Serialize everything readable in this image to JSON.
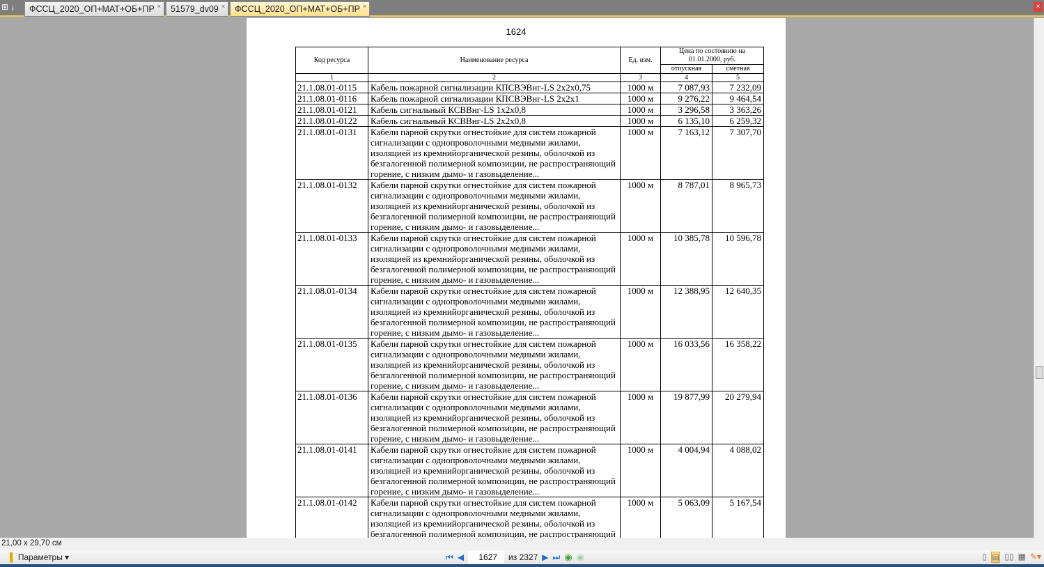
{
  "tabs": [
    {
      "label": "ФССЦ_2020_ОП+МАТ+ОБ+ПР",
      "active": false
    },
    {
      "label": "51579_dv09",
      "active": false
    },
    {
      "label": "ФССЦ_2020_ОП+МАТ+ОБ+ПР",
      "active": true
    }
  ],
  "page": {
    "number": "1624"
  },
  "table": {
    "headers": {
      "code": "Код ресурса",
      "name": "Наименование ресурса",
      "unit": "Ед. изм.",
      "price": "Цена по состоянию на 01.01.2000, руб.",
      "release": "отпускная",
      "estimate": "сметная"
    },
    "col_numbers": [
      "1",
      "2",
      "3",
      "4",
      "5"
    ],
    "rows": [
      {
        "code": "21.1.08.01-0115",
        "name": "Кабель пожарной сигнализации КПСВЭВнг-LS 2x2x0,75",
        "unit": "1000 м",
        "release": "7 087,93",
        "estimate": "7 232,09"
      },
      {
        "code": "21.1.08.01-0116",
        "name": "Кабель пожарной сигнализации КПСВЭВнг-LS 2x2x1",
        "unit": "1000 м",
        "release": "9 276,22",
        "estimate": "9 464,54"
      },
      {
        "code": "21.1.08.01-0121",
        "name": "Кабель сигнальный КСВВнг-LS 1x2x0,8",
        "unit": "1000 м",
        "release": "3 296,58",
        "estimate": "3 363,26"
      },
      {
        "code": "21.1.08.01-0122",
        "name": "Кабель сигнальный КСВВнг-LS 2x2x0,8",
        "unit": "1000 м",
        "release": "6 135,10",
        "estimate": "6 259,32"
      },
      {
        "code": "21.1.08.01-0131",
        "name": "Кабели парной скрутки огнестойкие для систем пожарной сигнализации с однопроволочными медными жилами, изоляцией из кремнийорганической резины, оболочкой из безгалогенной полимерной композиции, не распространяющий горение, с низким дымо- и газовыделение...",
        "unit": "1000 м",
        "release": "7 163,12",
        "estimate": "7 307,70"
      },
      {
        "code": "21.1.08.01-0132",
        "name": "Кабели парной скрутки огнестойкие для систем пожарной сигнализации с однопроволочными медными жилами, изоляцией из кремнийорганической резины, оболочкой из безгалогенной полимерной композиции, не распространяющий горение, с низким дымо- и газовыделение...",
        "unit": "1000 м",
        "release": "8 787,01",
        "estimate": "8 965,73"
      },
      {
        "code": "21.1.08.01-0133",
        "name": "Кабели парной скрутки огнестойкие для систем пожарной сигнализации с однопроволочными медными жилами, изоляцией из кремнийорганической резины, оболочкой из безгалогенной полимерной композиции, не распространяющий горение, с низким дымо- и газовыделение...",
        "unit": "1000 м",
        "release": "10 385,78",
        "estimate": "10 596,78"
      },
      {
        "code": "21.1.08.01-0134",
        "name": "Кабели парной скрутки огнестойкие для систем пожарной сигнализации с однопроволочными медными жилами, изоляцией из кремнийорганической резины, оболочкой из безгалогенной полимерной композиции, не распространяющий горение, с низким дымо- и газовыделение...",
        "unit": "1000 м",
        "release": "12 388,95",
        "estimate": "12 640,35"
      },
      {
        "code": "21.1.08.01-0135",
        "name": "Кабели парной скрутки огнестойкие для систем пожарной сигнализации с однопроволочными медными жилами, изоляцией из кремнийорганической резины, оболочкой из безгалогенной полимерной композиции, не распространяющий горение, с низким дымо- и газовыделение...",
        "unit": "1000 м",
        "release": "16 033,56",
        "estimate": "16 358,22"
      },
      {
        "code": "21.1.08.01-0136",
        "name": "Кабели парной скрутки огнестойкие для систем пожарной сигнализации с однопроволочными медными жилами, изоляцией из кремнийорганической резины, оболочкой из безгалогенной полимерной композиции, не распространяющий горение, с низким дымо- и газовыделение...",
        "unit": "1000 м",
        "release": "19 877,99",
        "estimate": "20 279,94"
      },
      {
        "code": "21.1.08.01-0141",
        "name": "Кабели парной скрутки огнестойкие для систем пожарной сигнализации с однопроволочными медными жилами, изоляцией из кремнийорганической резины, оболочкой из безгалогенной полимерной композиции, не распространяющий горение, с низким дымо- и газовыделение...",
        "unit": "1000 м",
        "release": "4 004,94",
        "estimate": "4 088,02"
      },
      {
        "code": "21.1.08.01-0142",
        "name": "Кабели парной скрутки огнестойкие для систем пожарной сигнализации с однопроволочными медными жилами, изоляцией из кремнийорганической резины, оболочкой из безгалогенной полимерной композиции, не распространяющий горение, с низким дымо- и газовыделение...",
        "unit": "1000 м",
        "release": "5 063,09",
        "estimate": "5 167,54"
      }
    ]
  },
  "status": {
    "page_size": "21,00 x 29,70 см"
  },
  "toolbar": {
    "params_label": "Параметры",
    "current_page": "1627",
    "of_label": "из 2327"
  },
  "colors": {
    "accent": "#f3c64f",
    "nav": "#1f6fd1"
  }
}
